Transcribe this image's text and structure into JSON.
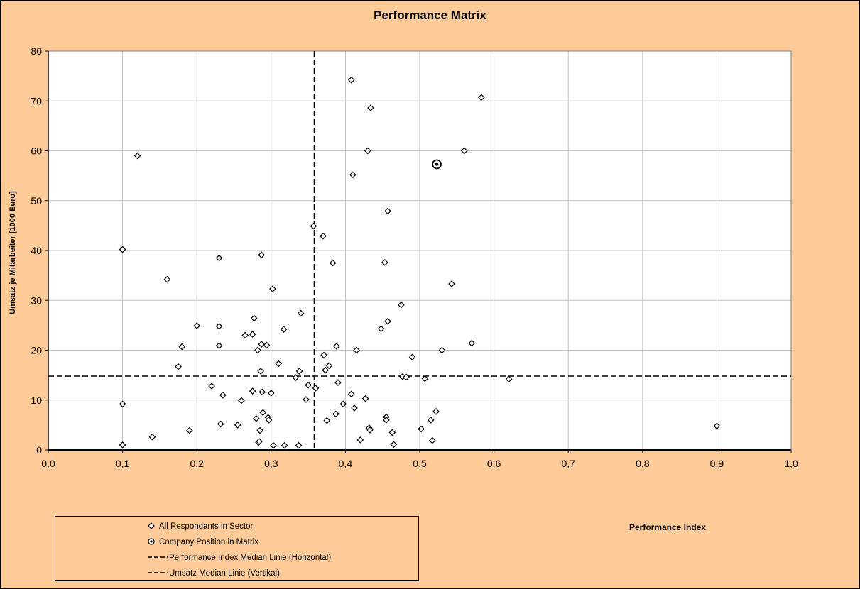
{
  "chart_data": {
    "type": "scatter",
    "title": "Performance Matrix",
    "xlabel": "Performance Index",
    "ylabel": "Umsatz je Mitarbeiter  [1000 Euro]",
    "xlim": [
      0,
      1
    ],
    "ylim": [
      0,
      80
    ],
    "x_ticks": [
      "0,0",
      "0,1",
      "0,2",
      "0,3",
      "0,4",
      "0,5",
      "0,6",
      "0,7",
      "0,8",
      "0,9",
      "1,0"
    ],
    "y_ticks": [
      "0",
      "10",
      "20",
      "30",
      "40",
      "50",
      "60",
      "70",
      "80"
    ],
    "grid": true,
    "legend_position": "bottom-left",
    "series": [
      {
        "name": "All Respondants in Sector",
        "marker": "diamond",
        "points": [
          [
            0.1,
            1.0
          ],
          [
            0.1,
            9.2
          ],
          [
            0.1,
            40.2
          ],
          [
            0.12,
            59.0
          ],
          [
            0.14,
            2.6
          ],
          [
            0.16,
            34.2
          ],
          [
            0.175,
            16.7
          ],
          [
            0.18,
            20.7
          ],
          [
            0.19,
            3.9
          ],
          [
            0.2,
            24.9
          ],
          [
            0.22,
            12.8
          ],
          [
            0.23,
            38.5
          ],
          [
            0.23,
            24.8
          ],
          [
            0.23,
            20.9
          ],
          [
            0.232,
            5.2
          ],
          [
            0.235,
            11.0
          ],
          [
            0.255,
            5.0
          ],
          [
            0.26,
            9.9
          ],
          [
            0.265,
            23.0
          ],
          [
            0.275,
            23.2
          ],
          [
            0.275,
            11.8
          ],
          [
            0.277,
            26.4
          ],
          [
            0.28,
            6.3
          ],
          [
            0.282,
            20.0
          ],
          [
            0.283,
            1.5
          ],
          [
            0.284,
            1.7
          ],
          [
            0.285,
            3.9
          ],
          [
            0.286,
            15.8
          ],
          [
            0.287,
            21.2
          ],
          [
            0.287,
            39.1
          ],
          [
            0.288,
            11.6
          ],
          [
            0.289,
            7.5
          ],
          [
            0.294,
            21.0
          ],
          [
            0.296,
            6.5
          ],
          [
            0.297,
            6.0
          ],
          [
            0.3,
            11.4
          ],
          [
            0.302,
            32.3
          ],
          [
            0.303,
            0.9
          ],
          [
            0.31,
            17.3
          ],
          [
            0.317,
            24.2
          ],
          [
            0.318,
            0.9
          ],
          [
            0.333,
            14.5
          ],
          [
            0.337,
            0.9
          ],
          [
            0.338,
            15.8
          ],
          [
            0.34,
            27.4
          ],
          [
            0.347,
            10.1
          ],
          [
            0.35,
            13.0
          ],
          [
            0.357,
            44.9
          ],
          [
            0.36,
            12.4
          ],
          [
            0.37,
            42.9
          ],
          [
            0.371,
            19.0
          ],
          [
            0.373,
            16.0
          ],
          [
            0.375,
            5.9
          ],
          [
            0.378,
            16.9
          ],
          [
            0.383,
            37.5
          ],
          [
            0.387,
            7.2
          ],
          [
            0.388,
            20.8
          ],
          [
            0.39,
            13.5
          ],
          [
            0.397,
            9.2
          ],
          [
            0.408,
            74.2
          ],
          [
            0.408,
            11.2
          ],
          [
            0.41,
            55.2
          ],
          [
            0.412,
            8.4
          ],
          [
            0.415,
            20.0
          ],
          [
            0.42,
            2.0
          ],
          [
            0.427,
            10.3
          ],
          [
            0.43,
            60.0
          ],
          [
            0.432,
            4.4
          ],
          [
            0.433,
            4.0
          ],
          [
            0.434,
            68.6
          ],
          [
            0.448,
            24.3
          ],
          [
            0.453,
            37.6
          ],
          [
            0.455,
            6.6
          ],
          [
            0.455,
            6.0
          ],
          [
            0.457,
            47.9
          ],
          [
            0.457,
            25.8
          ],
          [
            0.463,
            3.5
          ],
          [
            0.465,
            1.1
          ],
          [
            0.475,
            29.1
          ],
          [
            0.477,
            14.7
          ],
          [
            0.482,
            14.6
          ],
          [
            0.49,
            18.6
          ],
          [
            0.502,
            4.2
          ],
          [
            0.507,
            14.3
          ],
          [
            0.515,
            6.0
          ],
          [
            0.517,
            1.9
          ],
          [
            0.522,
            7.7
          ],
          [
            0.53,
            20.0
          ],
          [
            0.543,
            33.3
          ],
          [
            0.56,
            60.0
          ],
          [
            0.57,
            21.4
          ],
          [
            0.583,
            70.7
          ],
          [
            0.62,
            14.2
          ],
          [
            0.9,
            4.8
          ]
        ]
      },
      {
        "name": "Company Position in Matrix",
        "marker": "circle-dot",
        "points": [
          [
            0.523,
            57.3
          ]
        ]
      }
    ],
    "reference_lines": [
      {
        "name": "Performance Index Median Linie (Horizontal)",
        "orientation": "horizontal",
        "value": 14.8,
        "style": "dashed"
      },
      {
        "name": "Umsatz Median Linie (Vertikal)",
        "orientation": "vertical",
        "value": 0.358,
        "style": "dashed"
      }
    ]
  },
  "colors": {
    "background": "#FFCC99",
    "plot_area": "#FFFFFF",
    "grid": "#C0C0C0",
    "axis": "#000000",
    "marker": "#000000"
  }
}
